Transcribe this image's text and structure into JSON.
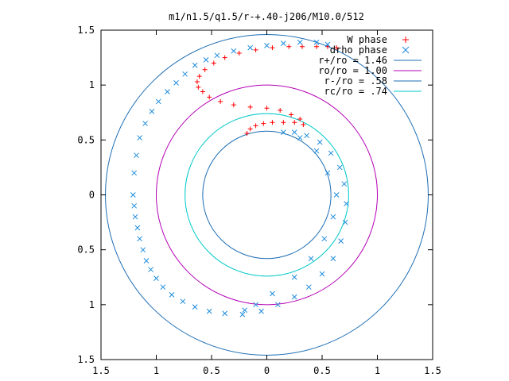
{
  "chart_data": {
    "type": "scatter",
    "title": "m1/n1.5/q1.5/r-+.40-j206/M10.0/512",
    "xlabel": "",
    "ylabel": "",
    "xlim": [
      -1.5,
      1.5
    ],
    "ylim": [
      -1.5,
      1.5
    ],
    "x_ticks": [
      -1.5,
      -1,
      -0.5,
      0,
      0.5,
      1,
      1.5
    ],
    "y_ticks": [
      -1.5,
      -1,
      -0.5,
      0,
      0.5,
      1,
      1.5
    ],
    "x_tick_labels": [
      "1.5",
      "1",
      "0.5",
      "0",
      "0.5",
      "1",
      "1.5"
    ],
    "y_tick_labels": [
      "1.5",
      "1",
      "0.5",
      "0",
      "0.5",
      "1",
      "1.5"
    ],
    "grid": false,
    "legend_position": "top-right",
    "series": [
      {
        "name": "W phase",
        "marker": "plus",
        "color": "#ff0000",
        "points": [
          [
            -0.18,
            0.56
          ],
          [
            -0.15,
            0.6
          ],
          [
            -0.1,
            0.63
          ],
          [
            -0.03,
            0.65
          ],
          [
            0.05,
            0.66
          ],
          [
            0.15,
            0.66
          ],
          [
            0.25,
            0.66
          ],
          [
            0.33,
            0.64
          ],
          [
            0.3,
            0.69
          ],
          [
            0.22,
            0.73
          ],
          [
            0.12,
            0.77
          ],
          [
            0.0,
            0.79
          ],
          [
            -0.15,
            0.8
          ],
          [
            -0.3,
            0.82
          ],
          [
            -0.42,
            0.85
          ],
          [
            -0.52,
            0.89
          ],
          [
            -0.58,
            0.94
          ],
          [
            -0.62,
            0.98
          ],
          [
            -0.63,
            1.03
          ],
          [
            -0.61,
            1.08
          ],
          [
            -0.56,
            1.14
          ],
          [
            -0.48,
            1.2
          ],
          [
            -0.38,
            1.25
          ],
          [
            -0.25,
            1.29
          ],
          [
            -0.1,
            1.32
          ],
          [
            0.05,
            1.34
          ],
          [
            0.2,
            1.35
          ],
          [
            0.32,
            1.35
          ],
          [
            0.45,
            1.35
          ],
          [
            0.55,
            1.35
          ],
          [
            0.63,
            1.34
          ]
        ]
      },
      {
        "name": "drho phase",
        "marker": "cross",
        "color": "#1e8cdc",
        "points": [
          [
            0.55,
            1.37
          ],
          [
            0.45,
            1.39
          ],
          [
            0.3,
            1.39
          ],
          [
            0.15,
            1.38
          ],
          [
            0.0,
            1.36
          ],
          [
            -0.15,
            1.34
          ],
          [
            -0.3,
            1.31
          ],
          [
            -0.45,
            1.27
          ],
          [
            -0.55,
            1.23
          ],
          [
            -0.65,
            1.18
          ],
          [
            -0.74,
            1.1
          ],
          [
            -0.82,
            1.02
          ],
          [
            -0.9,
            0.94
          ],
          [
            -0.98,
            0.85
          ],
          [
            -1.04,
            0.76
          ],
          [
            -1.1,
            0.65
          ],
          [
            -1.15,
            0.52
          ],
          [
            -1.18,
            0.36
          ],
          [
            -1.2,
            0.2
          ],
          [
            -1.21,
            0.0
          ],
          [
            -1.2,
            -0.1
          ],
          [
            -1.19,
            -0.2
          ],
          [
            -1.17,
            -0.3
          ],
          [
            -1.15,
            -0.4
          ],
          [
            -1.12,
            -0.5
          ],
          [
            -1.09,
            -0.6
          ],
          [
            -1.05,
            -0.68
          ],
          [
            -1.0,
            -0.76
          ],
          [
            -0.94,
            -0.84
          ],
          [
            -0.86,
            -0.91
          ],
          [
            -0.76,
            -0.97
          ],
          [
            -0.65,
            -1.02
          ],
          [
            -0.52,
            -1.06
          ],
          [
            -0.38,
            -1.08
          ],
          [
            -0.22,
            -1.09
          ],
          [
            -0.05,
            -1.06
          ],
          [
            0.1,
            -1.0
          ],
          [
            0.25,
            -0.93
          ],
          [
            0.38,
            -0.84
          ],
          [
            0.5,
            -0.72
          ],
          [
            0.6,
            -0.58
          ],
          [
            0.67,
            -0.42
          ],
          [
            0.71,
            -0.25
          ],
          [
            0.72,
            -0.08
          ],
          [
            0.7,
            0.1
          ],
          [
            0.66,
            0.25
          ],
          [
            0.58,
            0.38
          ],
          [
            0.48,
            0.48
          ],
          [
            0.36,
            0.54
          ],
          [
            0.25,
            0.57
          ],
          [
            0.15,
            0.57
          ],
          [
            0.3,
            0.52
          ],
          [
            0.45,
            0.4
          ],
          [
            0.55,
            0.2
          ],
          [
            0.63,
            0.0
          ],
          [
            0.6,
            -0.2
          ],
          [
            0.52,
            -0.4
          ],
          [
            0.4,
            -0.58
          ],
          [
            0.25,
            -0.75
          ],
          [
            0.05,
            -0.9
          ],
          [
            -0.1,
            -1.0
          ],
          [
            -0.2,
            -1.05
          ]
        ]
      },
      {
        "name": "r+/ro = 1.46",
        "type": "circle",
        "radius": 1.46,
        "color": "#1e6eb4"
      },
      {
        "name": "ro/ro = 1.00",
        "type": "circle",
        "radius": 1.0,
        "color": "#b400b4"
      },
      {
        "name": "r-/ro = .58",
        "type": "circle",
        "radius": 0.58,
        "color": "#1e6eb4"
      },
      {
        "name": "rc/ro = .74",
        "type": "circle",
        "radius": 0.74,
        "color": "#00c8c8"
      }
    ]
  }
}
